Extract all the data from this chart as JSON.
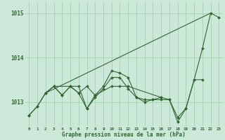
{
  "line_main": [
    1012.7,
    1012.9,
    1013.2,
    1013.35,
    1013.15,
    1013.35,
    1013.2,
    1012.85,
    1013.15,
    1013.35,
    1013.7,
    1013.65,
    1013.55,
    1013.1,
    1013.0,
    1013.05,
    1013.1,
    1013.05,
    1012.55,
    1012.85,
    1013.5,
    1014.2,
    1015.0,
    1014.9
  ],
  "line_b": [
    1012.7,
    1012.9,
    1013.2,
    1013.35,
    1013.15,
    1013.35,
    1013.35,
    1012.85,
    1013.1,
    1013.3,
    1013.55,
    1013.55,
    1013.3,
    1013.1,
    1013.05,
    1013.05,
    1013.05,
    1013.05,
    1012.65,
    1012.85,
    1013.5,
    1013.5,
    null,
    null
  ],
  "line_c_x": [
    2,
    3,
    5,
    6,
    7,
    8,
    10,
    11,
    12,
    16
  ],
  "line_c_y": [
    1013.2,
    1013.35,
    1013.35,
    1013.2,
    1013.35,
    1013.15,
    1013.35,
    1013.35,
    1013.35,
    1013.1
  ],
  "trend_x": [
    2,
    22
  ],
  "trend_y": [
    1013.2,
    1015.0
  ],
  "ylim": [
    1012.45,
    1015.25
  ],
  "yticks": [
    1013,
    1014,
    1015
  ],
  "xticks": [
    0,
    1,
    2,
    3,
    4,
    5,
    6,
    7,
    8,
    9,
    10,
    11,
    12,
    13,
    14,
    15,
    16,
    17,
    18,
    19,
    20,
    21,
    22,
    23
  ],
  "xlabel": "Graphe pression niveau de la mer (hPa)",
  "bg_color": "#cce8d8",
  "grid_color": "#99ccaa",
  "line_color": "#336633",
  "fig_width": 3.2,
  "fig_height": 2.0,
  "dpi": 100
}
